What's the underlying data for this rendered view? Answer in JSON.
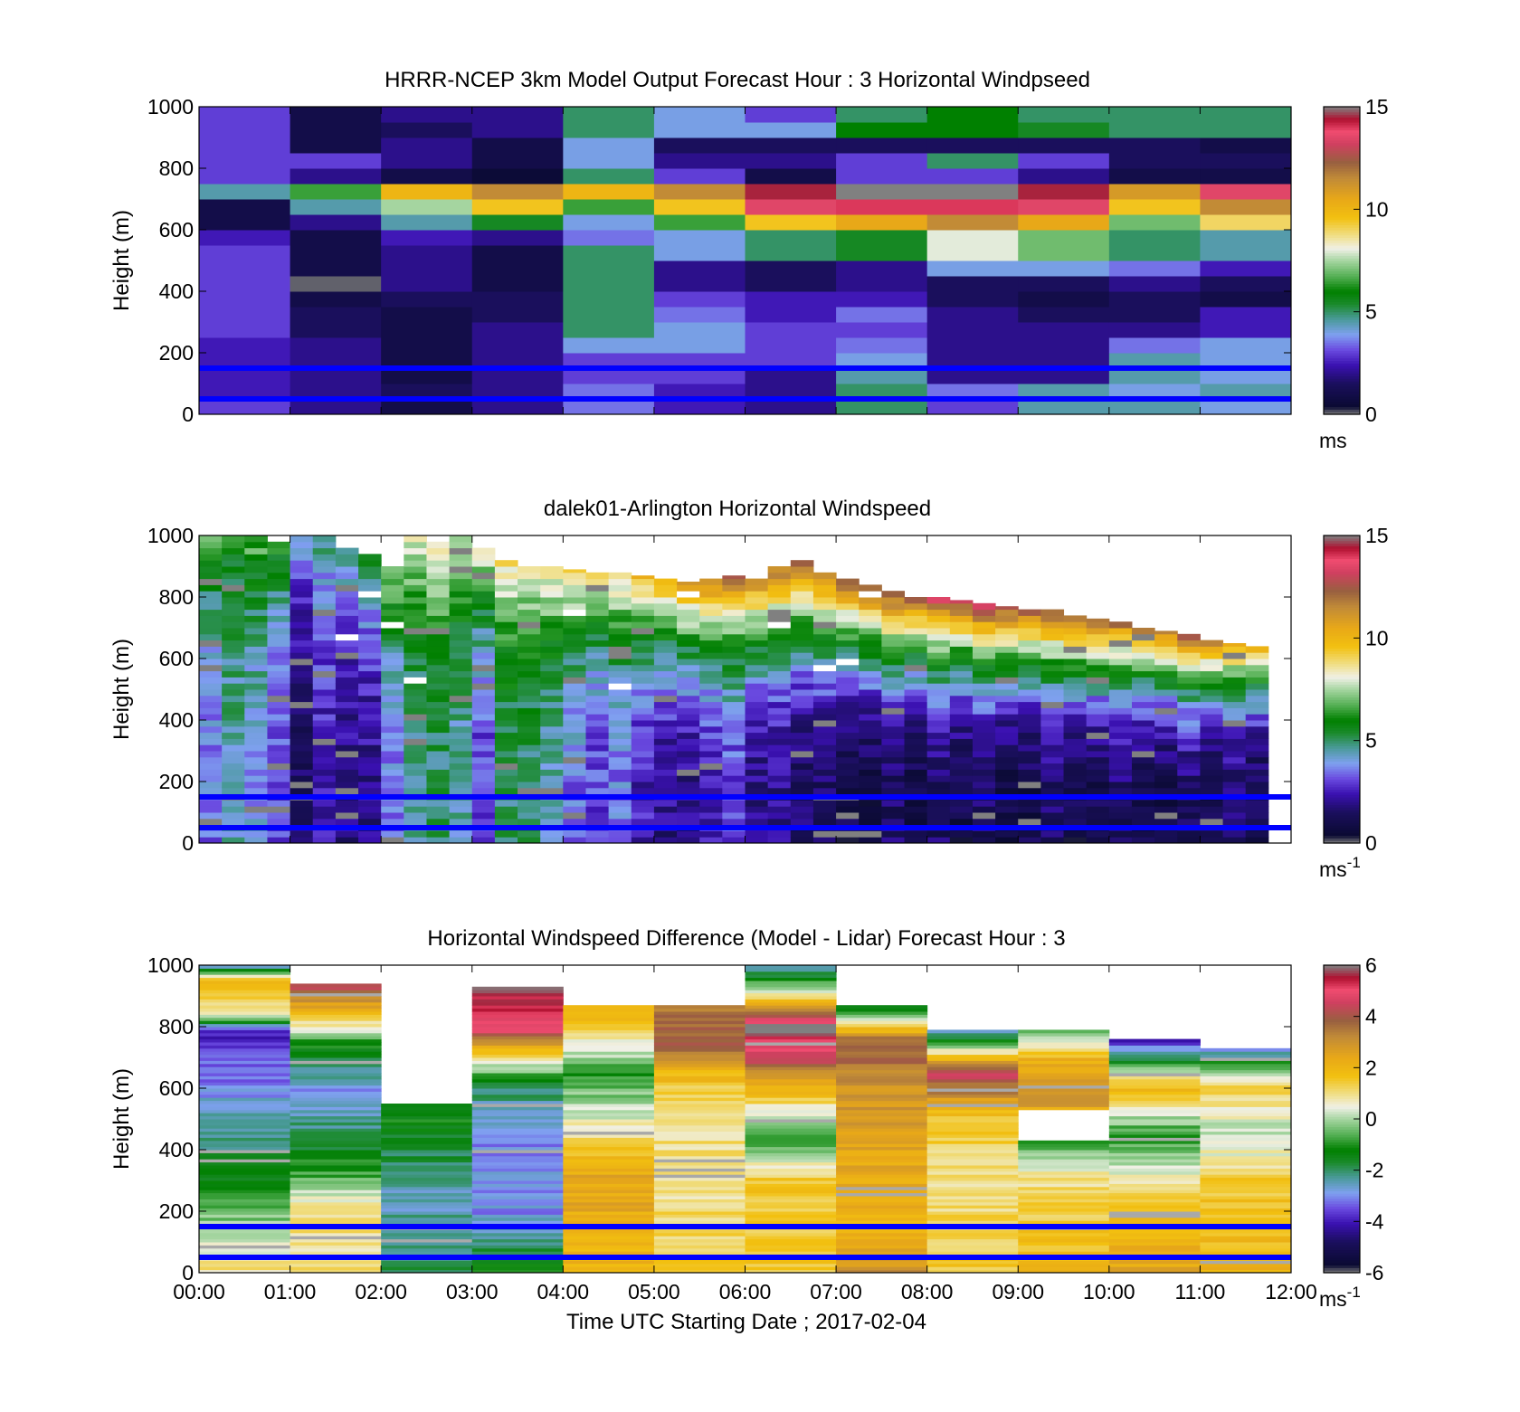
{
  "figure": {
    "xlabel": "Time UTC  Starting Date ; 2017-02-04"
  },
  "chart_data": [
    {
      "type": "heatmap",
      "title": "HRRR-NCEP 3km Model Output   Forecast Hour : 3 Horizontal Windpseed",
      "ylabel": "Height (m)",
      "ylim": [
        0,
        1000
      ],
      "yticks": [
        "0",
        "200",
        "400",
        "600",
        "800",
        "1000"
      ],
      "xlim": [
        0,
        12
      ],
      "x_hours": [
        0,
        1,
        2,
        3,
        4,
        5,
        6,
        7,
        8,
        9,
        10,
        11
      ],
      "heights": [
        25,
        75,
        125,
        175,
        225,
        275,
        325,
        375,
        425,
        475,
        525,
        575,
        625,
        675,
        725,
        775,
        825,
        875,
        925,
        975
      ],
      "values": [
        [
          3.0,
          2.0,
          1.0,
          2.0,
          3.5,
          2.5,
          2.0,
          5.0,
          3.0,
          4.5,
          4.5,
          4.0
        ],
        [
          2.5,
          2.0,
          1.5,
          2.0,
          3.5,
          2.5,
          2.0,
          5.0,
          3.5,
          4.5,
          4.0,
          4.5
        ],
        [
          2.5,
          2.0,
          1.0,
          2.0,
          3.0,
          3.0,
          2.0,
          4.5,
          2.0,
          2.0,
          4.5,
          4.0
        ],
        [
          2.5,
          2.0,
          1.0,
          2.0,
          3.0,
          3.0,
          3.0,
          4.0,
          2.0,
          2.0,
          4.5,
          4.0
        ],
        [
          2.5,
          2.0,
          1.0,
          2.0,
          4.0,
          4.0,
          3.0,
          3.5,
          2.0,
          2.0,
          3.5,
          4.0
        ],
        [
          3.0,
          1.5,
          1.0,
          2.0,
          5.0,
          4.0,
          3.0,
          3.0,
          2.0,
          2.0,
          2.0,
          2.5
        ],
        [
          3.0,
          1.5,
          1.0,
          1.5,
          5.0,
          3.5,
          2.5,
          3.5,
          2.0,
          1.5,
          1.5,
          2.5
        ],
        [
          3.0,
          1.0,
          1.5,
          1.5,
          5.0,
          3.0,
          2.5,
          2.5,
          1.5,
          1.0,
          1.5,
          1.0
        ],
        [
          3.0,
          0.1,
          2.0,
          1.0,
          5.0,
          2.0,
          1.5,
          2.0,
          1.5,
          1.5,
          2.0,
          1.5
        ],
        [
          3.0,
          1.0,
          2.0,
          1.0,
          5.0,
          2.0,
          1.5,
          2.0,
          4.0,
          4.0,
          3.5,
          2.5
        ],
        [
          3.0,
          1.0,
          2.0,
          1.0,
          5.0,
          4.0,
          5.0,
          5.5,
          8.0,
          7.0,
          5.0,
          4.5
        ],
        [
          2.5,
          1.0,
          2.5,
          2.0,
          3.5,
          4.0,
          5.0,
          5.5,
          8.0,
          7.0,
          5.0,
          4.5
        ],
        [
          1.0,
          2.0,
          4.5,
          5.5,
          4.0,
          6.5,
          9.5,
          10.5,
          11.5,
          10.5,
          7.0,
          9.0
        ],
        [
          1.0,
          4.5,
          7.5,
          9.5,
          6.5,
          9.5,
          13.5,
          14.0,
          14.0,
          13.5,
          9.5,
          11.5
        ],
        [
          4.5,
          6.5,
          10.0,
          11.5,
          10.0,
          11.5,
          14.5,
          15.0,
          15.0,
          14.5,
          11.0,
          13.5
        ],
        [
          3.0,
          2.0,
          1.0,
          0.5,
          5.0,
          3.0,
          1.0,
          3.0,
          3.0,
          2.0,
          1.0,
          1.0
        ],
        [
          3.0,
          3.0,
          2.0,
          1.0,
          4.0,
          2.0,
          2.0,
          3.0,
          5.0,
          3.0,
          1.5,
          1.5
        ],
        [
          3.0,
          1.0,
          2.0,
          1.0,
          4.0,
          1.5,
          1.5,
          1.5,
          1.5,
          1.5,
          1.5,
          1.0
        ],
        [
          3.0,
          1.0,
          1.5,
          2.0,
          5.0,
          4.0,
          4.0,
          6.0,
          6.0,
          5.5,
          5.0,
          5.0
        ],
        [
          3.0,
          1.0,
          2.0,
          2.0,
          5.0,
          4.0,
          3.0,
          5.0,
          6.0,
          5.0,
          5.0,
          5.0
        ]
      ],
      "colorbar": {
        "ticks": [
          "0",
          "5",
          "10",
          "15"
        ],
        "units": "ms"
      },
      "reference_lines_height": [
        150,
        50
      ]
    },
    {
      "type": "heatmap",
      "title": "dalek01-Arlington  Horizontal Windspeed",
      "ylabel": "Height (m)",
      "ylim": [
        0,
        1000
      ],
      "yticks": [
        "0",
        "200",
        "400",
        "600",
        "800",
        "1000"
      ],
      "xlim": [
        0,
        12
      ],
      "time_step_hours": 0.25,
      "time_count": 47,
      "heights": [
        25,
        75,
        125,
        175,
        225,
        275,
        325,
        375,
        425,
        475,
        525,
        575,
        625,
        675,
        725,
        775,
        825,
        875,
        925,
        975
      ],
      "top_height_by_time": [
        1000,
        1000,
        1000,
        980,
        1000,
        1000,
        960,
        940,
        900,
        1000,
        980,
        1000,
        960,
        920,
        900,
        900,
        890,
        880,
        880,
        870,
        860,
        850,
        860,
        870,
        860,
        900,
        920,
        880,
        860,
        840,
        820,
        800,
        800,
        790,
        780,
        770,
        760,
        760,
        740,
        730,
        720,
        700,
        690,
        680,
        660,
        650,
        640
      ],
      "profile_low_by_time": [
        3.5,
        4.5,
        4.0,
        3.0,
        1.5,
        2.5,
        2.0,
        2.0,
        3.5,
        4.5,
        5.0,
        4.5,
        3.0,
        5.0,
        5.0,
        4.5,
        3.5,
        3.0,
        3.5,
        2.5,
        2.0,
        2.0,
        2.5,
        3.0,
        2.0,
        2.0,
        1.5,
        1.5,
        1.0,
        1.0,
        1.5,
        1.0,
        1.5,
        1.0,
        1.5,
        1.0,
        1.0,
        1.5,
        1.0,
        1.0,
        1.5,
        1.0,
        1.0,
        1.5,
        1.0,
        1.5,
        1.0
      ],
      "profile_top_by_time": [
        7.0,
        6.0,
        7.0,
        6.5,
        4.0,
        5.0,
        5.0,
        6.0,
        8.0,
        8.5,
        9.0,
        8.0,
        8.5,
        9.0,
        8.5,
        9.0,
        9.5,
        9.0,
        9.5,
        10.5,
        11.0,
        11.5,
        12.0,
        12.5,
        12.0,
        12.5,
        13.0,
        12.5,
        13.0,
        13.5,
        13.5,
        13.0,
        14.0,
        13.5,
        14.0,
        13.5,
        13.0,
        13.5,
        13.5,
        13.0,
        12.5,
        12.5,
        12.0,
        13.0,
        12.0,
        11.5,
        11.0
      ],
      "colorbar": {
        "ticks": [
          "0",
          "5",
          "10",
          "15"
        ],
        "units": "ms",
        "units_exp": "-1"
      },
      "reference_lines_height": [
        150,
        50
      ]
    },
    {
      "type": "heatmap",
      "title": "Horizontal Windspeed Difference (Model - Lidar) Forecast Hour : 3",
      "ylabel": "Height (m)",
      "ylim": [
        0,
        1000
      ],
      "yticks": [
        "0",
        "200",
        "400",
        "600",
        "800",
        "1000"
      ],
      "xlim": [
        0,
        12
      ],
      "xticks": [
        "00:00",
        "01:00",
        "02:00",
        "03:00",
        "04:00",
        "05:00",
        "06:00",
        "07:00",
        "08:00",
        "09:00",
        "10:00",
        "11:00",
        "12:00"
      ],
      "x_hours": [
        0,
        1,
        2,
        3,
        4,
        5,
        6,
        7,
        8,
        9,
        10,
        11
      ],
      "top_height_by_hour": [
        1000,
        940,
        550,
        930,
        870,
        870,
        1000,
        870,
        790,
        790,
        760,
        730
      ],
      "profiles_by_hour": [
        [
          [
            0,
            1.0
          ],
          [
            150,
            0.0
          ],
          [
            250,
            -1.0
          ],
          [
            400,
            -2.0
          ],
          [
            600,
            -3.0
          ],
          [
            700,
            -3.5
          ],
          [
            780,
            -4.0
          ],
          [
            850,
            1.0
          ],
          [
            950,
            2.0
          ],
          [
            1000,
            -3.0
          ]
        ],
        [
          [
            0,
            1.0
          ],
          [
            200,
            1.0
          ],
          [
            300,
            -0.5
          ],
          [
            450,
            -2.0
          ],
          [
            600,
            -3.0
          ],
          [
            750,
            -1.0
          ],
          [
            850,
            2.0
          ],
          [
            940,
            4.5
          ]
        ],
        [
          [
            0,
            -2.0
          ],
          [
            250,
            -2.5
          ],
          [
            450,
            -1.5
          ],
          [
            550,
            -1.0
          ]
        ],
        [
          [
            0,
            -1.0
          ],
          [
            200,
            -3.0
          ],
          [
            450,
            -3.0
          ],
          [
            600,
            -2.0
          ],
          [
            700,
            1.0
          ],
          [
            780,
            4.5
          ],
          [
            930,
            6.0
          ]
        ],
        [
          [
            0,
            2.0
          ],
          [
            300,
            2.5
          ],
          [
            450,
            1.0
          ],
          [
            550,
            0.0
          ],
          [
            650,
            -1.0
          ],
          [
            800,
            1.5
          ],
          [
            870,
            2.0
          ]
        ],
        [
          [
            0,
            1.5
          ],
          [
            250,
            1.0
          ],
          [
            400,
            1.0
          ],
          [
            550,
            1.0
          ],
          [
            650,
            2.0
          ],
          [
            750,
            4.0
          ],
          [
            870,
            3.5
          ]
        ],
        [
          [
            0,
            1.5
          ],
          [
            300,
            1.5
          ],
          [
            450,
            -1.0
          ],
          [
            600,
            2.0
          ],
          [
            700,
            4.5
          ],
          [
            800,
            6.0
          ],
          [
            900,
            1.0
          ],
          [
            1000,
            -3.0
          ]
        ],
        [
          [
            0,
            3.0
          ],
          [
            150,
            2.0
          ],
          [
            400,
            2.5
          ],
          [
            600,
            3.0
          ],
          [
            750,
            4.0
          ],
          [
            870,
            -2.0
          ]
        ],
        [
          [
            0,
            1.5
          ],
          [
            300,
            1.0
          ],
          [
            500,
            1.5
          ],
          [
            650,
            4.5
          ],
          [
            790,
            -3.0
          ]
        ],
        [
          [
            0,
            2.0
          ],
          [
            300,
            1.0
          ],
          [
            450,
            -1.0
          ],
          [
            550,
            3.0
          ],
          [
            700,
            2.0
          ],
          [
            790,
            -1.0
          ]
        ],
        [
          [
            0,
            2.5
          ],
          [
            250,
            1.5
          ],
          [
            450,
            -1.0
          ],
          [
            600,
            2.0
          ],
          [
            760,
            -4.0
          ]
        ],
        [
          [
            0,
            2.0
          ],
          [
            300,
            1.5
          ],
          [
            450,
            0.0
          ],
          [
            600,
            1.5
          ],
          [
            730,
            -3.0
          ]
        ]
      ],
      "blank_region": {
        "hour": 9,
        "height_range": [
          430,
          530
        ]
      },
      "colorbar": {
        "ticks": [
          "-6",
          "-4",
          "-2",
          "0",
          "2",
          "4",
          "6"
        ],
        "units": "ms",
        "units_exp": "-1"
      },
      "reference_lines_height": [
        150,
        50
      ]
    }
  ]
}
